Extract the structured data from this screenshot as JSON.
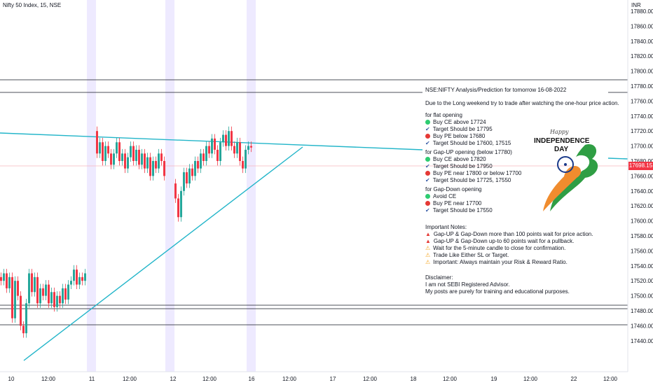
{
  "header": {
    "title": "Nifty 50 Index, 15, NSE",
    "currency": "INR"
  },
  "price_axis": {
    "ticks": [
      "17880.00",
      "17860.00",
      "17840.00",
      "17820.00",
      "17800.00",
      "17780.00",
      "17760.00",
      "17740.00",
      "17720.00",
      "17700.00",
      "17680.00",
      "17660.00",
      "17640.00",
      "17620.00",
      "17600.00",
      "17580.00",
      "17560.00",
      "17540.00",
      "17520.00",
      "17500.00",
      "17480.00",
      "17460.00",
      "17440.00"
    ],
    "last_price": "17698.15"
  },
  "time_axis": {
    "ticks": [
      "10",
      "12:00",
      "11",
      "12:00",
      "12",
      "12:00",
      "16",
      "12:00",
      "17",
      "12:00",
      "18",
      "12:00",
      "19",
      "12:00",
      "22",
      "12:00"
    ]
  },
  "notes": {
    "heading": "NSE:NIFTY Analysis/Prediction for tomorrow 16-08-2022",
    "intro": "Due to the Long weekend try to trade after watching the one-hour price action.",
    "flat_title": "for flat opening",
    "flat": [
      "Buy CE above 17724",
      "Target Should be 17795",
      "Buy PE below 17680",
      "Target Should be 17600, 17515"
    ],
    "gapup_title": "for Gap-UP opening (below 17780)",
    "gapup": [
      "Buy CE above 17820",
      "Target Should be 17950",
      "Buy PE near 17800 or below 17700",
      "Target Should be 17725, 17550"
    ],
    "gapdown_title": "for Gap-Down opening",
    "gapdown": [
      "Avoid CE",
      "Buy PE near 17700",
      "Target Should be 17550"
    ],
    "important_title": "Important Notes:",
    "important": [
      "Gap-UP & Gap-Down more than 100 points wait for price action.",
      "Gap-UP & Gap-Down up-to 60 points wait for a pullback.",
      "Wait for the 5-minute candle to close for confirmation.",
      "Trade Like Either SL or Target.",
      "Important: Always maintain your Risk & Reward Ratio."
    ],
    "disclaimer_title": "Disclaimer:",
    "disclaimer": [
      "I am not SEBI Registered Advisor.",
      "My posts are purely for training and educational purposes."
    ]
  },
  "banner": {
    "script": "Happy",
    "line1": "INDEPENDENCE",
    "line2": "DAY"
  },
  "colors": {
    "up": "#26a69a",
    "down": "#f23645",
    "trend": "#22b5c9",
    "session": "#e8e4ff"
  }
}
